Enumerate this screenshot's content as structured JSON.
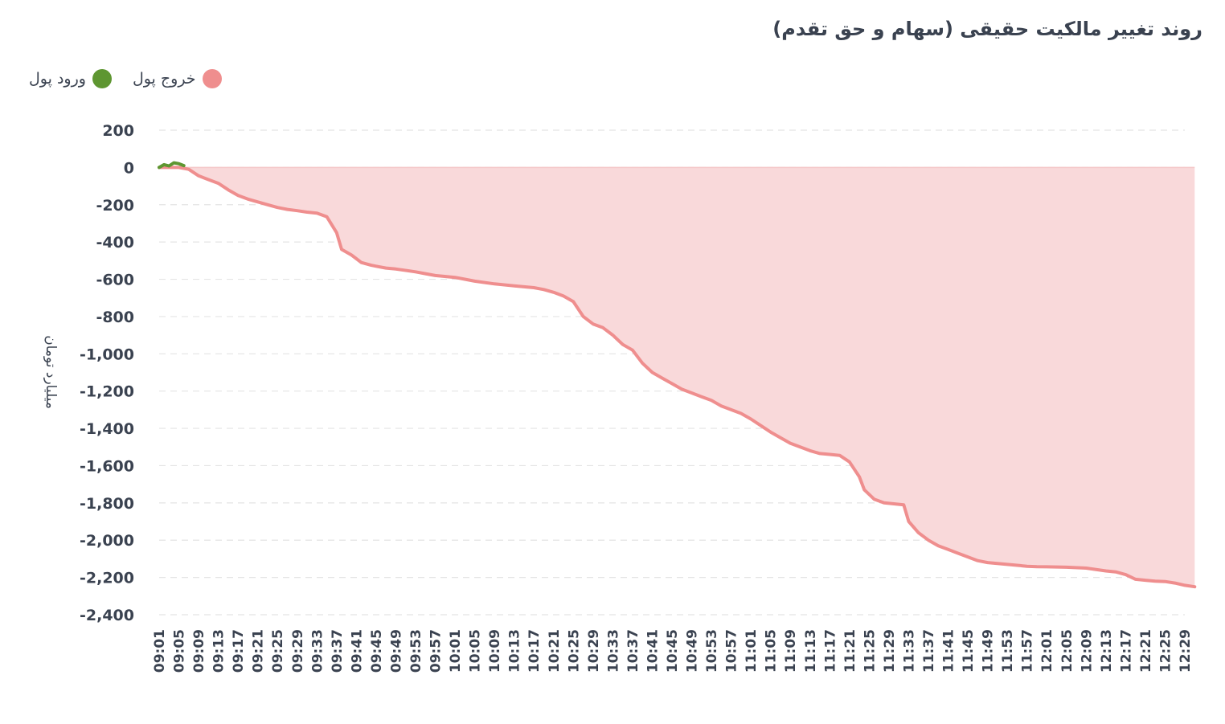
{
  "chart_data": {
    "type": "area",
    "title": "روند تغییر مالکیت حقیقی (سهام و حق تقدم)",
    "ylabel": "میلیارد تومان",
    "ylim": [
      -2400,
      200
    ],
    "yticks": [
      200,
      0,
      -200,
      -400,
      -600,
      -800,
      -1000,
      -1200,
      -1400,
      -1600,
      -1800,
      -2000,
      -2200,
      -2400
    ],
    "ytick_labels": [
      "200",
      "0",
      "-200",
      "-400",
      "-600",
      "-800",
      "-1,000",
      "-1,200",
      "-1,400",
      "-1,600",
      "-1,800",
      "-2,000",
      "-2,200",
      "-2,400"
    ],
    "xtick_labels": [
      "09:01",
      "09:05",
      "09:09",
      "09:13",
      "09:17",
      "09:21",
      "09:25",
      "09:29",
      "09:33",
      "09:37",
      "09:41",
      "09:45",
      "09:49",
      "09:53",
      "09:57",
      "10:01",
      "10:05",
      "10:09",
      "10:13",
      "10:17",
      "10:21",
      "10:25",
      "10:29",
      "10:33",
      "10:37",
      "10:41",
      "10:45",
      "10:49",
      "10:53",
      "10:57",
      "11:01",
      "11:05",
      "11:09",
      "11:13",
      "11:17",
      "11:21",
      "11:25",
      "11:29",
      "11:33",
      "11:37",
      "11:41",
      "11:45",
      "11:49",
      "11:53",
      "11:57",
      "12:01",
      "12:05",
      "12:09",
      "12:13",
      "12:17",
      "12:21",
      "12:25",
      "12:29"
    ],
    "grid": true,
    "legend_position": "top-left",
    "series": [
      {
        "name": "ورود پول",
        "color": "#5e9631",
        "x": [
          "09:01",
          "09:02",
          "09:03",
          "09:04",
          "09:05",
          "09:06"
        ],
        "values": [
          0,
          15,
          8,
          25,
          20,
          10
        ]
      },
      {
        "name": "خروج پول",
        "color": "#ef8e8e",
        "fill": "#f9d9da",
        "x": [
          "09:01",
          "09:05",
          "09:07",
          "09:09",
          "09:11",
          "09:13",
          "09:15",
          "09:17",
          "09:19",
          "09:21",
          "09:23",
          "09:25",
          "09:27",
          "09:29",
          "09:31",
          "09:33",
          "09:35",
          "09:37",
          "09:38",
          "09:40",
          "09:41",
          "09:42",
          "09:44",
          "09:45",
          "09:47",
          "09:49",
          "09:53",
          "09:55",
          "09:57",
          "10:01",
          "10:03",
          "10:05",
          "10:09",
          "10:13",
          "10:17",
          "10:19",
          "10:21",
          "10:23",
          "10:25",
          "10:27",
          "10:29",
          "10:31",
          "10:33",
          "10:35",
          "10:37",
          "10:39",
          "10:41",
          "10:43",
          "10:45",
          "10:47",
          "10:49",
          "10:51",
          "10:53",
          "10:55",
          "10:57",
          "10:59",
          "11:01",
          "11:03",
          "11:05",
          "11:07",
          "11:09",
          "11:11",
          "11:13",
          "11:15",
          "11:17",
          "11:19",
          "11:21",
          "11:23",
          "11:24",
          "11:26",
          "11:28",
          "11:30",
          "11:32",
          "11:33",
          "11:35",
          "11:37",
          "11:39",
          "11:41",
          "11:43",
          "11:45",
          "11:47",
          "11:49",
          "11:51",
          "11:53",
          "11:55",
          "11:57",
          "11:59",
          "12:01",
          "12:05",
          "12:09",
          "12:13",
          "12:15",
          "12:17",
          "12:19",
          "12:21",
          "12:23",
          "12:25",
          "12:27",
          "12:29",
          "12:31"
        ],
        "values": [
          0,
          0,
          -10,
          -45,
          -65,
          -85,
          -120,
          -150,
          -170,
          -185,
          -200,
          -215,
          -225,
          -232,
          -240,
          -245,
          -265,
          -350,
          -440,
          -470,
          -490,
          -510,
          -525,
          -530,
          -540,
          -545,
          -560,
          -570,
          -580,
          -590,
          -600,
          -610,
          -625,
          -635,
          -645,
          -655,
          -670,
          -690,
          -720,
          -800,
          -840,
          -860,
          -900,
          -950,
          -980,
          -1050,
          -1100,
          -1130,
          -1160,
          -1190,
          -1210,
          -1230,
          -1250,
          -1280,
          -1300,
          -1320,
          -1350,
          -1385,
          -1420,
          -1450,
          -1480,
          -1500,
          -1520,
          -1535,
          -1540,
          -1545,
          -1580,
          -1660,
          -1730,
          -1780,
          -1800,
          -1805,
          -1810,
          -1900,
          -1960,
          -2000,
          -2030,
          -2050,
          -2070,
          -2090,
          -2110,
          -2120,
          -2125,
          -2130,
          -2135,
          -2140,
          -2142,
          -2143,
          -2145,
          -2150,
          -2165,
          -2170,
          -2185,
          -2210,
          -2215,
          -2220,
          -2222,
          -2230,
          -2242,
          -2250
        ]
      }
    ]
  }
}
